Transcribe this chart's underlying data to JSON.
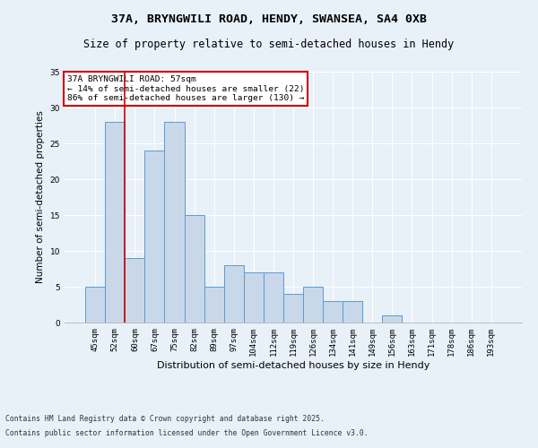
{
  "title1": "37A, BRYNGWILI ROAD, HENDY, SWANSEA, SA4 0XB",
  "title2": "Size of property relative to semi-detached houses in Hendy",
  "xlabel": "Distribution of semi-detached houses by size in Hendy",
  "ylabel": "Number of semi-detached properties",
  "categories": [
    "45sqm",
    "52sqm",
    "60sqm",
    "67sqm",
    "75sqm",
    "82sqm",
    "89sqm",
    "97sqm",
    "104sqm",
    "112sqm",
    "119sqm",
    "126sqm",
    "134sqm",
    "141sqm",
    "149sqm",
    "156sqm",
    "163sqm",
    "171sqm",
    "178sqm",
    "186sqm",
    "193sqm"
  ],
  "values": [
    5,
    28,
    9,
    24,
    28,
    15,
    5,
    8,
    7,
    7,
    4,
    5,
    3,
    3,
    0,
    1,
    0,
    0,
    0,
    0,
    0
  ],
  "bar_color": "#c8d8e8",
  "bar_edge_color": "#5b9bd5",
  "background_color": "#e8f0f8",
  "grid_color": "#ffffff",
  "annotation_box_text": "37A BRYNGWILI ROAD: 57sqm\n← 14% of semi-detached houses are smaller (22)\n86% of semi-detached houses are larger (130) →",
  "annotation_box_color": "#ffffff",
  "annotation_box_edge_color": "#cc0000",
  "red_line_x": 1.5,
  "ylim": [
    0,
    35
  ],
  "yticks": [
    0,
    5,
    10,
    15,
    20,
    25,
    30,
    35
  ],
  "footer1": "Contains HM Land Registry data © Crown copyright and database right 2025.",
  "footer2": "Contains public sector information licensed under the Open Government Licence v3.0.",
  "title1_fontsize": 9.5,
  "title2_fontsize": 8.5,
  "xlabel_fontsize": 8,
  "ylabel_fontsize": 7.5,
  "tick_fontsize": 6.5,
  "annotation_fontsize": 6.8,
  "footer_fontsize": 5.8
}
